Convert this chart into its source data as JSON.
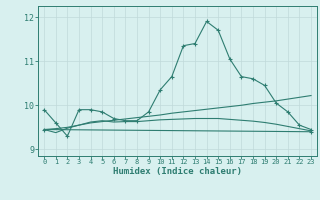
{
  "x": [
    0,
    1,
    2,
    3,
    4,
    5,
    6,
    7,
    8,
    9,
    10,
    11,
    12,
    13,
    14,
    15,
    16,
    17,
    18,
    19,
    20,
    21,
    22,
    23
  ],
  "line1": [
    9.9,
    9.6,
    9.3,
    9.9,
    9.9,
    9.85,
    9.7,
    9.65,
    9.65,
    9.85,
    10.35,
    10.65,
    11.35,
    11.4,
    11.9,
    11.7,
    11.05,
    10.65,
    10.6,
    10.45,
    10.05,
    9.85,
    9.55,
    9.45
  ],
  "line2_x": [
    0,
    23
  ],
  "line2_y": [
    9.45,
    9.4
  ],
  "line3": [
    9.45,
    9.38,
    9.48,
    9.55,
    9.62,
    9.65,
    9.62,
    9.63,
    9.63,
    9.65,
    9.67,
    9.68,
    9.69,
    9.7,
    9.7,
    9.7,
    9.68,
    9.66,
    9.64,
    9.61,
    9.57,
    9.52,
    9.47,
    9.42
  ],
  "line4": [
    9.45,
    9.47,
    9.5,
    9.55,
    9.6,
    9.63,
    9.66,
    9.69,
    9.72,
    9.75,
    9.78,
    9.82,
    9.85,
    9.88,
    9.91,
    9.94,
    9.97,
    10.0,
    10.04,
    10.07,
    10.1,
    10.14,
    10.18,
    10.22
  ],
  "line_color": "#2e7d71",
  "bg_color": "#d8f0ef",
  "grid_color": "#c0dada",
  "xlabel": "Humidex (Indice chaleur)",
  "ylim": [
    8.85,
    12.25
  ],
  "xlim": [
    -0.5,
    23.5
  ],
  "yticks": [
    9,
    10,
    11,
    12
  ],
  "xticks": [
    0,
    1,
    2,
    3,
    4,
    5,
    6,
    7,
    8,
    9,
    10,
    11,
    12,
    13,
    14,
    15,
    16,
    17,
    18,
    19,
    20,
    21,
    22,
    23
  ]
}
